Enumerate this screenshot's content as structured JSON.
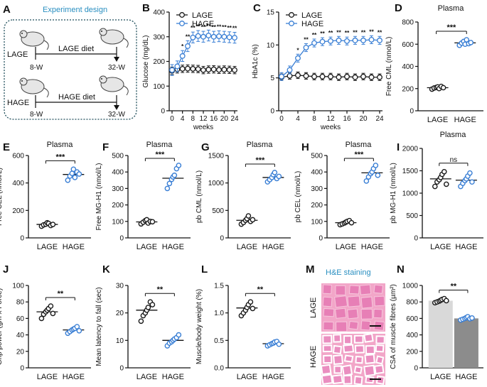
{
  "colors": {
    "lage": "#1a1a1a",
    "hage": "#3a7fd5",
    "bar_lage": "#d9d9d9",
    "bar_hage": "#8c8c8c",
    "he_bg": "#f2a6c8",
    "he_fibre": "#e77fb6"
  },
  "panelA": {
    "letter": "A",
    "title": "Experiment design",
    "lage": {
      "group": "LAGE",
      "diet": "LAGE diet",
      "start": "8-W",
      "end": "32-W"
    },
    "hage": {
      "group": "HAGE",
      "diet": "HAGE diet",
      "start": "8-W",
      "end": "32-W"
    }
  },
  "panelM": {
    "letter": "M",
    "title": "H&E staining",
    "row1": "LAGE",
    "row2": "HAGE"
  },
  "chart_data": [
    {
      "id": "B",
      "letter": "B",
      "type": "line",
      "ylabel": "Glucose (mg/dL)",
      "xlabel": "weeks",
      "ylim": [
        0,
        400
      ],
      "yticks": [
        0,
        100,
        200,
        300,
        400
      ],
      "xlim": [
        0,
        24
      ],
      "xticks": [
        0,
        4,
        8,
        12,
        16,
        20,
        24
      ],
      "x": [
        0,
        2,
        4,
        6,
        8,
        10,
        12,
        14,
        16,
        18,
        20,
        22,
        24
      ],
      "legend": [
        "LAGE",
        "HAGE"
      ],
      "series": [
        {
          "name": "LAGE",
          "values": [
            162,
            168,
            170,
            171,
            170,
            169,
            165,
            167,
            168,
            166,
            167,
            166,
            165
          ],
          "err": 15
        },
        {
          "name": "HAGE",
          "values": [
            165,
            180,
            222,
            262,
            297,
            303,
            300,
            305,
            300,
            302,
            300,
            298,
            296
          ],
          "err": 22
        }
      ],
      "sig": [
        "*",
        "**",
        "**",
        "**",
        "**",
        "**",
        "**",
        "**",
        "**",
        "**",
        "**"
      ]
    },
    {
      "id": "C",
      "letter": "C",
      "type": "line",
      "ylabel": "HbA1c (%)",
      "xlabel": "weeks",
      "ylim": [
        0,
        15
      ],
      "yticks": [
        0,
        5,
        10,
        15
      ],
      "xlim": [
        0,
        24
      ],
      "xticks": [
        0,
        4,
        8,
        12,
        16,
        20,
        24
      ],
      "x": [
        0,
        2,
        4,
        6,
        8,
        10,
        12,
        14,
        16,
        18,
        20,
        22,
        24
      ],
      "legend": [
        "LAGE",
        "HAGE"
      ],
      "series": [
        {
          "name": "LAGE",
          "values": [
            5.1,
            5.3,
            5.4,
            5.3,
            5.2,
            5.2,
            5.2,
            5.1,
            5.2,
            5.1,
            5.2,
            5.1,
            5.1
          ],
          "err": 0.5
        },
        {
          "name": "HAGE",
          "values": [
            5.2,
            6.2,
            8.0,
            9.6,
            10.3,
            10.5,
            10.6,
            10.7,
            10.6,
            10.7,
            10.7,
            10.8,
            10.7
          ],
          "err": 0.6
        }
      ],
      "sig": [
        "*",
        "**",
        "**",
        "**",
        "**",
        "**",
        "**",
        "**",
        "**",
        "**",
        "**"
      ]
    },
    {
      "id": "D",
      "letter": "D",
      "type": "scatter",
      "title": "Plasma",
      "ylabel": "Free CML (nmol/L)",
      "ylim": [
        0,
        800
      ],
      "yticks": [
        0,
        200,
        400,
        600,
        800
      ],
      "categories": [
        "LAGE",
        "HAGE"
      ],
      "groups": [
        {
          "name": "LAGE",
          "values": [
            195,
            205,
            210,
            215,
            200,
            220,
            208
          ],
          "mean": 208
        },
        {
          "name": "HAGE",
          "values": [
            590,
            610,
            625,
            600,
            640,
            605,
            615
          ],
          "mean": 612
        }
      ],
      "sig": "***"
    },
    {
      "id": "E",
      "letter": "E",
      "type": "scatter",
      "title": "Plasma",
      "ylabel": "Free CEL (nmol/L)",
      "ylim": [
        0,
        600
      ],
      "yticks": [
        0,
        200,
        400,
        600
      ],
      "categories": [
        "LAGE",
        "HAGE"
      ],
      "groups": [
        {
          "name": "LAGE",
          "values": [
            85,
            95,
            100,
            110,
            105,
            90,
            98
          ],
          "mean": 98
        },
        {
          "name": "HAGE",
          "values": [
            420,
            450,
            470,
            500,
            440,
            480,
            465
          ],
          "mean": 462
        }
      ],
      "sig": "***"
    },
    {
      "id": "F",
      "letter": "F",
      "type": "scatter",
      "title": "Plasma",
      "ylabel": "Free MG-H1 (nmol/L)",
      "ylim": [
        0,
        500
      ],
      "yticks": [
        0,
        100,
        200,
        300,
        400,
        500
      ],
      "categories": [
        "LAGE",
        "HAGE"
      ],
      "groups": [
        {
          "name": "LAGE",
          "values": [
            85,
            95,
            105,
            110,
            90,
            100,
            98
          ],
          "mean": 97
        },
        {
          "name": "HAGE",
          "values": [
            300,
            330,
            355,
            370,
            380,
            420,
            440
          ],
          "mean": 362
        }
      ],
      "sig": "***"
    },
    {
      "id": "G",
      "letter": "G",
      "type": "scatter",
      "title": "Plasma",
      "ylabel": "pb CML (nmol/L)",
      "ylim": [
        0,
        1500
      ],
      "yticks": [
        0,
        500,
        1000,
        1500
      ],
      "categories": [
        "LAGE",
        "HAGE"
      ],
      "groups": [
        {
          "name": "LAGE",
          "values": [
            250,
            280,
            320,
            350,
            400,
            300,
            330
          ],
          "mean": 320
        },
        {
          "name": "HAGE",
          "values": [
            1020,
            1060,
            1100,
            1150,
            1190,
            1080,
            1120
          ],
          "mean": 1100
        }
      ],
      "sig": "***"
    },
    {
      "id": "H",
      "letter": "H",
      "type": "scatter",
      "title": "Plasma",
      "ylabel": "pb CEL (nmol/L)",
      "ylim": [
        0,
        500
      ],
      "yticks": [
        0,
        100,
        200,
        300,
        400,
        500
      ],
      "categories": [
        "LAGE",
        "HAGE"
      ],
      "groups": [
        {
          "name": "LAGE",
          "values": [
            80,
            85,
            90,
            95,
            100,
            105,
            92
          ],
          "mean": 92
        },
        {
          "name": "HAGE",
          "values": [
            345,
            370,
            390,
            400,
            420,
            440,
            380
          ],
          "mean": 395
        }
      ],
      "sig": "***"
    },
    {
      "id": "I",
      "letter": "I",
      "type": "scatter",
      "title": "Plasma",
      "ylabel": "pb MG-H1 (nmol/L)",
      "ylim": [
        0,
        2000
      ],
      "yticks": [
        0,
        500,
        1000,
        1500,
        2000
      ],
      "categories": [
        "LAGE",
        "HAGE"
      ],
      "groups": [
        {
          "name": "LAGE",
          "values": [
            1150,
            1250,
            1300,
            1350,
            1420,
            1480,
            1200
          ],
          "mean": 1320
        },
        {
          "name": "HAGE",
          "values": [
            1150,
            1220,
            1280,
            1320,
            1380,
            1450,
            1250
          ],
          "mean": 1290
        }
      ],
      "sig": "ns"
    },
    {
      "id": "J",
      "letter": "J",
      "type": "scatter",
      "ylabel": "Grip power (gm x Force)",
      "ylim": [
        0,
        100
      ],
      "yticks": [
        0,
        20,
        40,
        60,
        80,
        100
      ],
      "categories": [
        "LAGE",
        "HAGE"
      ],
      "groups": [
        {
          "name": "LAGE",
          "values": [
            60,
            65,
            68,
            70,
            72,
            75,
            66
          ],
          "mean": 68
        },
        {
          "name": "HAGE",
          "values": [
            42,
            44,
            46,
            47,
            48,
            50,
            45
          ],
          "mean": 46
        }
      ],
      "sig": "**"
    },
    {
      "id": "K",
      "letter": "K",
      "type": "scatter",
      "ylabel": "Mean latency to fall (sec)",
      "ylim": [
        0,
        30
      ],
      "yticks": [
        0,
        10,
        20,
        30
      ],
      "categories": [
        "LAGE",
        "HAGE"
      ],
      "groups": [
        {
          "name": "LAGE",
          "values": [
            17,
            19,
            20,
            21,
            22,
            24,
            23
          ],
          "mean": 21
        },
        {
          "name": "HAGE",
          "values": [
            8,
            9,
            9.5,
            10,
            10.5,
            11,
            12
          ],
          "mean": 10
        }
      ],
      "sig": "**"
    },
    {
      "id": "L",
      "letter": "L",
      "type": "scatter",
      "ylabel": "Muscle/body weight (%)",
      "ylim": [
        0,
        1.5
      ],
      "yticks": [
        0.0,
        0.5,
        1.0,
        1.5
      ],
      "categories": [
        "LAGE",
        "HAGE"
      ],
      "groups": [
        {
          "name": "LAGE",
          "values": [
            0.95,
            1.0,
            1.05,
            1.1,
            1.15,
            1.2,
            1.08
          ],
          "mean": 1.09
        },
        {
          "name": "HAGE",
          "values": [
            0.4,
            0.42,
            0.44,
            0.45,
            0.47,
            0.48,
            0.43
          ],
          "mean": 0.44
        }
      ],
      "sig": "**"
    },
    {
      "id": "N",
      "letter": "N",
      "type": "bar",
      "ylabel": "CSA of muscle fibres (µm²)",
      "ylim": [
        0,
        1000
      ],
      "yticks": [
        0,
        200,
        400,
        600,
        800,
        1000
      ],
      "categories": [
        "LAGE",
        "HAGE"
      ],
      "groups": [
        {
          "name": "LAGE",
          "values": [
            790,
            800,
            810,
            820,
            830,
            840,
            815
          ],
          "mean": 815
        },
        {
          "name": "HAGE",
          "values": [
            580,
            590,
            600,
            610,
            620,
            595,
            605
          ],
          "mean": 600
        }
      ],
      "sig": "**"
    }
  ]
}
